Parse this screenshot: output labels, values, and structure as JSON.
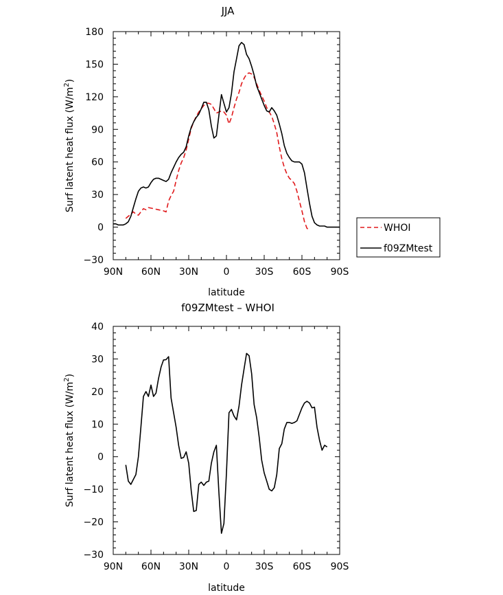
{
  "chart_data": [
    {
      "type": "line",
      "title": "JJA",
      "xlabel": "latitude",
      "ylabel": "Surf latent heat flux (W/m",
      "ylabel_sup": "2",
      "ylabel_close": ")",
      "xlim": [
        90,
        -90
      ],
      "ylim": [
        -30,
        180
      ],
      "xticks": [
        {
          "value": 90,
          "label": "90N"
        },
        {
          "value": 60,
          "label": "60N"
        },
        {
          "value": 30,
          "label": "30N"
        },
        {
          "value": 0,
          "label": "0"
        },
        {
          "value": -30,
          "label": "30S"
        },
        {
          "value": -60,
          "label": "60S"
        },
        {
          "value": -90,
          "label": "90S"
        }
      ],
      "yticks": [
        -30,
        0,
        30,
        60,
        90,
        120,
        150,
        180
      ],
      "grid": false,
      "legend_position": "right, outside plot",
      "series": [
        {
          "name": "WHOI",
          "color": "#e0191b",
          "dash": "dashed",
          "points": [
            [
              80,
              8
            ],
            [
              78,
              10
            ],
            [
              76,
              12
            ],
            [
              74,
              14
            ],
            [
              72,
              12
            ],
            [
              70,
              11
            ],
            [
              68,
              14
            ],
            [
              66,
              17
            ],
            [
              64,
              16
            ],
            [
              62,
              18
            ],
            [
              58,
              17
            ],
            [
              54,
              16
            ],
            [
              50,
              15
            ],
            [
              48,
              14
            ],
            [
              46,
              24
            ],
            [
              44,
              29
            ],
            [
              42,
              33
            ],
            [
              40,
              43
            ],
            [
              38,
              52
            ],
            [
              36,
              59
            ],
            [
              34,
              64
            ],
            [
              32,
              71
            ],
            [
              30,
              81
            ],
            [
              28,
              91
            ],
            [
              26,
              97
            ],
            [
              24,
              102
            ],
            [
              22,
              106
            ],
            [
              20,
              109
            ],
            [
              18,
              112
            ],
            [
              16,
              114
            ],
            [
              14,
              114
            ],
            [
              12,
              113
            ],
            [
              10,
              109
            ],
            [
              8,
              105
            ],
            [
              6,
              106
            ],
            [
              4,
              107
            ],
            [
              2,
              106
            ],
            [
              0,
              103
            ],
            [
              -2,
              95
            ],
            [
              -4,
              101
            ],
            [
              -6,
              110
            ],
            [
              -8,
              118
            ],
            [
              -10,
              124
            ],
            [
              -12,
              132
            ],
            [
              -14,
              137
            ],
            [
              -16,
              141
            ],
            [
              -18,
              142
            ],
            [
              -20,
              141
            ],
            [
              -22,
              138
            ],
            [
              -24,
              132
            ],
            [
              -26,
              126
            ],
            [
              -28,
              121
            ],
            [
              -30,
              116
            ],
            [
              -32,
              110
            ],
            [
              -34,
              106
            ],
            [
              -36,
              102
            ],
            [
              -38,
              95
            ],
            [
              -40,
              87
            ],
            [
              -42,
              74
            ],
            [
              -44,
              63
            ],
            [
              -46,
              55
            ],
            [
              -48,
              49
            ],
            [
              -50,
              45
            ],
            [
              -52,
              43
            ],
            [
              -54,
              40
            ],
            [
              -56,
              33
            ],
            [
              -58,
              24
            ],
            [
              -60,
              15
            ],
            [
              -62,
              5
            ],
            [
              -64,
              -1
            ],
            [
              -65,
              -2
            ]
          ]
        },
        {
          "name": "f09ZMtest",
          "color": "#000000",
          "dash": "solid",
          "points": [
            [
              90,
              3
            ],
            [
              88,
              3
            ],
            [
              86,
              2
            ],
            [
              84,
              2
            ],
            [
              82,
              2
            ],
            [
              80,
              3
            ],
            [
              78,
              5
            ],
            [
              76,
              10
            ],
            [
              74,
              18
            ],
            [
              72,
              26
            ],
            [
              70,
              33
            ],
            [
              68,
              36
            ],
            [
              66,
              37
            ],
            [
              64,
              36
            ],
            [
              62,
              37
            ],
            [
              60,
              41
            ],
            [
              58,
              44
            ],
            [
              56,
              45
            ],
            [
              54,
              45
            ],
            [
              52,
              44
            ],
            [
              50,
              43
            ],
            [
              48,
              42
            ],
            [
              46,
              44
            ],
            [
              44,
              50
            ],
            [
              42,
              55
            ],
            [
              40,
              60
            ],
            [
              38,
              64
            ],
            [
              36,
              67
            ],
            [
              34,
              69
            ],
            [
              32,
              74
            ],
            [
              30,
              84
            ],
            [
              28,
              92
            ],
            [
              26,
              97
            ],
            [
              24,
              101
            ],
            [
              22,
              104
            ],
            [
              20,
              109
            ],
            [
              18,
              115
            ],
            [
              16,
              115
            ],
            [
              14,
              108
            ],
            [
              12,
              93
            ],
            [
              10,
              82
            ],
            [
              8,
              84
            ],
            [
              6,
              103
            ],
            [
              4,
              122
            ],
            [
              2,
              114
            ],
            [
              0,
              106
            ],
            [
              -2,
              110
            ],
            [
              -4,
              123
            ],
            [
              -6,
              143
            ],
            [
              -8,
              155
            ],
            [
              -10,
              167
            ],
            [
              -12,
              170
            ],
            [
              -14,
              168
            ],
            [
              -16,
              159
            ],
            [
              -18,
              155
            ],
            [
              -20,
              148
            ],
            [
              -22,
              140
            ],
            [
              -24,
              130
            ],
            [
              -26,
              124
            ],
            [
              -28,
              118
            ],
            [
              -30,
              112
            ],
            [
              -32,
              107
            ],
            [
              -34,
              106
            ],
            [
              -36,
              110
            ],
            [
              -38,
              107
            ],
            [
              -40,
              103
            ],
            [
              -42,
              95
            ],
            [
              -44,
              86
            ],
            [
              -46,
              75
            ],
            [
              -48,
              68
            ],
            [
              -50,
              64
            ],
            [
              -52,
              61
            ],
            [
              -54,
              60
            ],
            [
              -56,
              60
            ],
            [
              -58,
              60
            ],
            [
              -60,
              58
            ],
            [
              -62,
              50
            ],
            [
              -64,
              36
            ],
            [
              -66,
              22
            ],
            [
              -68,
              10
            ],
            [
              -70,
              4
            ],
            [
              -72,
              2
            ],
            [
              -74,
              1
            ],
            [
              -76,
              1
            ],
            [
              -78,
              1
            ],
            [
              -80,
              0
            ],
            [
              -82,
              0
            ],
            [
              -84,
              0
            ],
            [
              -86,
              0
            ],
            [
              -88,
              0
            ],
            [
              -90,
              0
            ]
          ]
        }
      ]
    },
    {
      "type": "line",
      "title": "f09ZMtest – WHOI",
      "xlabel": "latitude",
      "ylabel": "Surf latent heat flux (W/m",
      "ylabel_sup": "2",
      "ylabel_close": ")",
      "xlim": [
        90,
        -90
      ],
      "ylim": [
        -30,
        40
      ],
      "xticks": [
        {
          "value": 90,
          "label": "90N"
        },
        {
          "value": 60,
          "label": "60N"
        },
        {
          "value": 30,
          "label": "30N"
        },
        {
          "value": 0,
          "label": "0"
        },
        {
          "value": -30,
          "label": "30S"
        },
        {
          "value": -60,
          "label": "60S"
        },
        {
          "value": -90,
          "label": "90S"
        }
      ],
      "yticks": [
        -30,
        -20,
        -10,
        0,
        10,
        20,
        30,
        40
      ],
      "grid": false,
      "series": [
        {
          "name": "",
          "color": "#000000",
          "dash": "solid",
          "points": [
            [
              80,
              -2.5
            ],
            [
              78,
              -7.5
            ],
            [
              76,
              -8.5
            ],
            [
              74,
              -7
            ],
            [
              72,
              -5.5
            ],
            [
              70,
              0
            ],
            [
              68,
              9
            ],
            [
              66,
              18.5
            ],
            [
              64,
              20
            ],
            [
              62,
              18.5
            ],
            [
              60,
              22
            ],
            [
              58,
              18.5
            ],
            [
              56,
              19.5
            ],
            [
              54,
              24
            ],
            [
              52,
              27.5
            ],
            [
              50,
              29.7
            ],
            [
              48,
              29.8
            ],
            [
              46,
              30.7
            ],
            [
              44,
              18
            ],
            [
              42,
              13.5
            ],
            [
              40,
              9
            ],
            [
              38,
              3.5
            ],
            [
              36,
              -0.5
            ],
            [
              34,
              -0.2
            ],
            [
              32,
              1.5
            ],
            [
              30,
              -2
            ],
            [
              28,
              -10.5
            ],
            [
              26,
              -16.8
            ],
            [
              24,
              -16.5
            ],
            [
              22,
              -8.5
            ],
            [
              20,
              -7.8
            ],
            [
              18,
              -8.8
            ],
            [
              16,
              -7.8
            ],
            [
              14,
              -7.5
            ],
            [
              12,
              -2
            ],
            [
              10,
              1.5
            ],
            [
              8,
              3.5
            ],
            [
              6,
              -11
            ],
            [
              4,
              -23.5
            ],
            [
              2,
              -20.5
            ],
            [
              0,
              -5
            ],
            [
              -2,
              13.5
            ],
            [
              -4,
              14.5
            ],
            [
              -6,
              12.5
            ],
            [
              -8,
              11.3
            ],
            [
              -10,
              15.5
            ],
            [
              -12,
              22
            ],
            [
              -14,
              27
            ],
            [
              -16,
              31.7
            ],
            [
              -18,
              31
            ],
            [
              -20,
              25.5
            ],
            [
              -22,
              16
            ],
            [
              -24,
              12
            ],
            [
              -26,
              6
            ],
            [
              -28,
              -1
            ],
            [
              -30,
              -5
            ],
            [
              -32,
              -7.5
            ],
            [
              -34,
              -10
            ],
            [
              -36,
              -10.5
            ],
            [
              -38,
              -9.5
            ],
            [
              -40,
              -5.5
            ],
            [
              -42,
              2.5
            ],
            [
              -44,
              4
            ],
            [
              -46,
              8.5
            ],
            [
              -48,
              10.5
            ],
            [
              -50,
              10.5
            ],
            [
              -52,
              10.2
            ],
            [
              -54,
              10.5
            ],
            [
              -56,
              11
            ],
            [
              -58,
              13
            ],
            [
              -60,
              15
            ],
            [
              -62,
              16.5
            ],
            [
              -64,
              17
            ],
            [
              -66,
              16.5
            ],
            [
              -68,
              15
            ],
            [
              -70,
              15.2
            ],
            [
              -72,
              9
            ],
            [
              -74,
              5
            ],
            [
              -76,
              2
            ],
            [
              -78,
              3.5
            ],
            [
              -80,
              3
            ]
          ]
        }
      ]
    }
  ],
  "legend": {
    "items": [
      {
        "label": "WHOI",
        "color": "#e0191b",
        "dash": "dashed"
      },
      {
        "label": "f09ZMtest",
        "color": "#000000",
        "dash": "solid"
      }
    ]
  }
}
